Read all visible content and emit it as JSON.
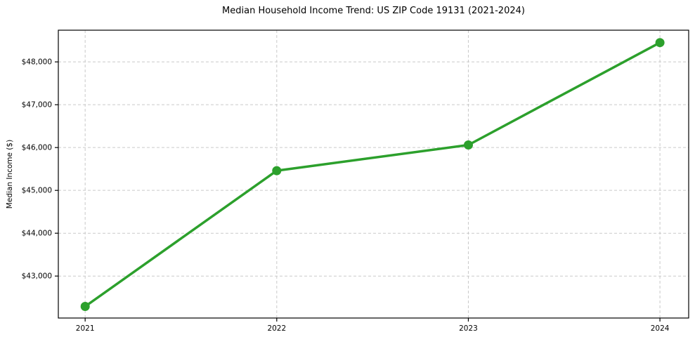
{
  "figure": {
    "title": "Median Household Income Trend: US ZIP Code 19131 (2021-2024)"
  },
  "chart_data": {
    "type": "line",
    "title": "Median Household Income Trend: US ZIP Code 19131 (2021-2024)",
    "xlabel": "",
    "ylabel": "Median Income ($)",
    "x": [
      2021,
      2022,
      2023,
      2024
    ],
    "xtick_labels": [
      "2021",
      "2022",
      "2023",
      "2024"
    ],
    "series": [
      {
        "name": "Median Household Income",
        "values": [
          42290,
          45460,
          46060,
          48450
        ]
      }
    ],
    "yticks": [
      43000,
      44000,
      45000,
      46000,
      47000,
      48000
    ],
    "ytick_labels": [
      "$43,000",
      "$44,000",
      "$45,000",
      "$46,000",
      "$47,000",
      "$48,000"
    ],
    "xlim": [
      2020.86,
      2024.15
    ],
    "ylim": [
      42020,
      48740
    ],
    "grid": true,
    "grid_style": "dashed",
    "legend": false,
    "marker": "circle"
  },
  "colors": {
    "line": "#2ca02c",
    "marker": "#2ca02c",
    "grid": "#c9c9c9",
    "axis": "#000000",
    "text": "#000000",
    "background": "#ffffff"
  }
}
